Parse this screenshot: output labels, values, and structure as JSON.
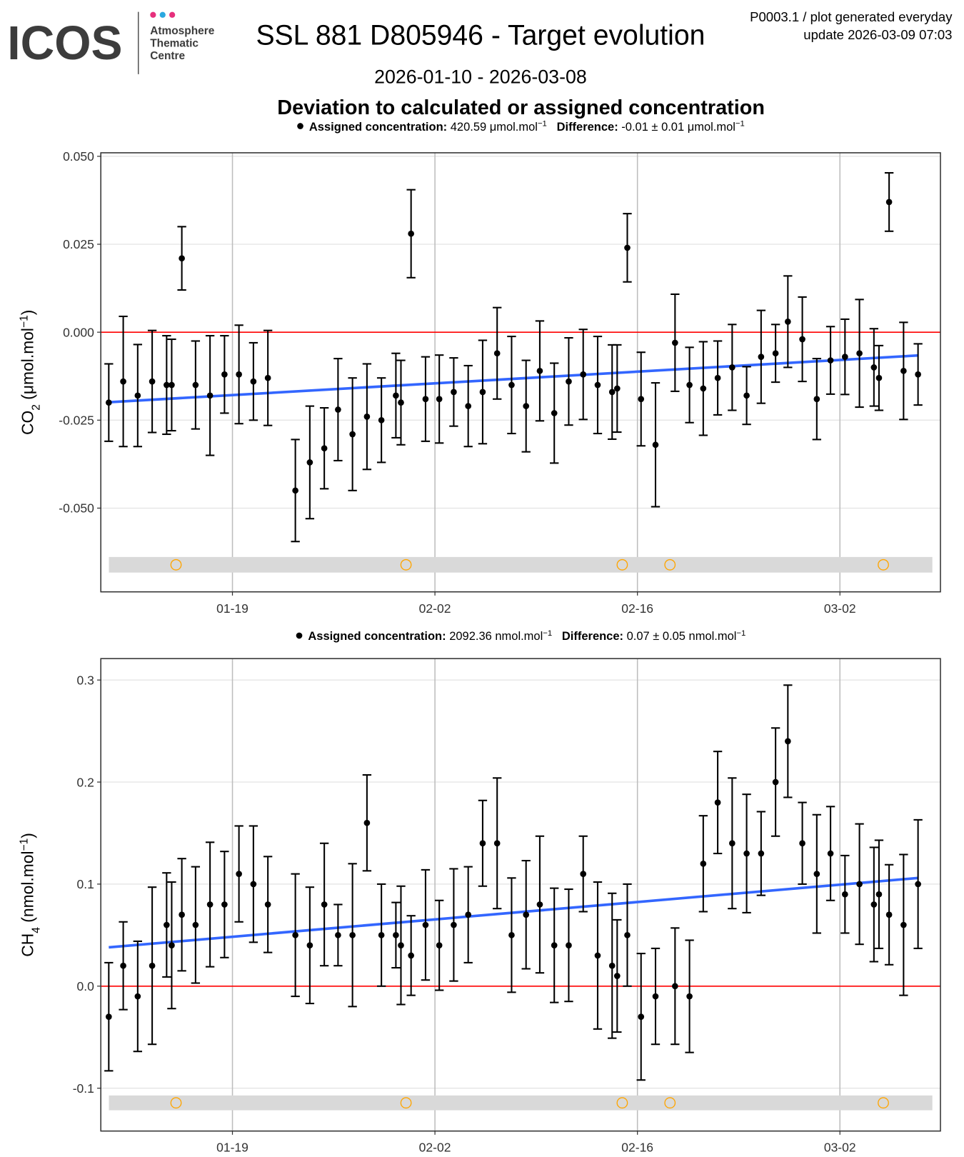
{
  "header": {
    "logo": "ICOS",
    "logo_lines": [
      "Atmosphere",
      "Thematic",
      "Centre"
    ],
    "title": "SSL 881 D805946 - Target evolution",
    "info": [
      "P0003.1 / plot generated everyday",
      "update  2026-03-09 07:03"
    ],
    "period": "2026-01-10 - 2026-03-08",
    "subtitle": "Deviation to calculated or assigned concentration"
  },
  "chart_data": [
    {
      "type": "scatter",
      "legend": {
        "label": "Assigned concentration:",
        "value": "420.59 μmol.mol",
        "value_exp": "−1",
        "diff_label": "Difference:",
        "diff_value": "-0.01 ± 0.01 μmol.mol",
        "diff_exp": "−1"
      },
      "ylabel": {
        "base": "CO",
        "sub": "2",
        "unit": " (μmol.mol",
        "sup": "−1",
        "close": ")"
      },
      "xlim": [
        9.9,
        67.95
      ],
      "xticks": [
        {
          "value": 19,
          "label": "01-19"
        },
        {
          "value": 33,
          "label": "02-02"
        },
        {
          "value": 47,
          "label": "02-16"
        },
        {
          "value": 61,
          "label": "03-02"
        }
      ],
      "ylim": [
        -0.0738,
        0.051
      ],
      "yticks": [
        {
          "value": -0.05,
          "label": "-0.050"
        },
        {
          "value": -0.025,
          "label": "-0.025"
        },
        {
          "value": 0,
          "label": "0.000"
        },
        {
          "value": 0.025,
          "label": "0.025"
        },
        {
          "value": 0.05,
          "label": "0.050"
        }
      ],
      "grid": true,
      "point_color": "#000000",
      "x": [
        10.45,
        11.45,
        12.45,
        13.45,
        14.45,
        14.8,
        15.5,
        16.45,
        17.45,
        18.45,
        19.45,
        20.45,
        21.45,
        23.35,
        24.35,
        25.35,
        26.3,
        27.3,
        28.3,
        29.3,
        30.3,
        30.65,
        31.35,
        32.35,
        33.3,
        34.3,
        35.3,
        36.3,
        37.3,
        38.3,
        39.3,
        40.25,
        41.25,
        42.25,
        43.25,
        44.25,
        45.25,
        45.6,
        46.3,
        47.25,
        48.25,
        49.6,
        50.6,
        51.55,
        52.55,
        53.55,
        54.55,
        55.55,
        56.55,
        57.4,
        58.4,
        59.4,
        60.35,
        61.35,
        62.35,
        63.35,
        63.7,
        64.4,
        65.4,
        66.4
      ],
      "values": [
        -0.02,
        -0.014,
        -0.018,
        -0.014,
        -0.015,
        -0.015,
        0.021,
        -0.015,
        -0.018,
        -0.012,
        -0.012,
        -0.014,
        -0.013,
        -0.045,
        -0.037,
        -0.033,
        -0.022,
        -0.029,
        -0.024,
        -0.025,
        -0.018,
        -0.02,
        0.028,
        -0.019,
        -0.019,
        -0.017,
        -0.021,
        -0.017,
        -0.006,
        -0.015,
        -0.021,
        -0.011,
        -0.023,
        -0.014,
        -0.012,
        -0.015,
        -0.017,
        -0.016,
        0.024,
        -0.019,
        -0.032,
        -0.003,
        -0.015,
        -0.016,
        -0.013,
        -0.01,
        -0.018,
        -0.007,
        -0.006,
        0.003,
        -0.002,
        -0.019,
        -0.008,
        -0.007,
        -0.006,
        -0.01,
        -0.013,
        0.037,
        -0.011,
        -0.012
      ],
      "errors": [
        0.011,
        0.0185,
        0.0145,
        0.0145,
        0.014,
        0.013,
        0.009,
        0.0125,
        0.017,
        0.011,
        0.014,
        0.011,
        0.0135,
        0.0145,
        0.016,
        0.0115,
        0.0145,
        0.016,
        0.015,
        0.012,
        0.012,
        0.012,
        0.0125,
        0.012,
        0.0125,
        0.0097,
        0.0115,
        0.0147,
        0.013,
        0.0138,
        0.013,
        0.0142,
        0.0142,
        0.0124,
        0.0128,
        0.0138,
        0.0134,
        0.0124,
        0.0097,
        0.0133,
        0.0176,
        0.0138,
        0.0107,
        0.0133,
        0.0105,
        0.0122,
        0.0082,
        0.0132,
        0.0082,
        0.013,
        0.012,
        0.0115,
        0.0096,
        0.0107,
        0.0153,
        0.011,
        0.0092,
        0.0083,
        0.0138,
        0.0087
      ],
      "trend": {
        "color": "#3366ff",
        "x": [
          10.45,
          66.4
        ],
        "values": [
          -0.0199,
          -0.0066
        ]
      },
      "reference_line": {
        "value": 0,
        "color": "#ff0000"
      },
      "flags": {
        "color": "#ffa500",
        "x": [
          15.1,
          31.0,
          45.95,
          49.25,
          64.0
        ]
      }
    },
    {
      "type": "scatter",
      "legend": {
        "label": "Assigned concentration:",
        "value": "2092.36 nmol.mol",
        "value_exp": "−1",
        "diff_label": "Difference:",
        "diff_value": "0.07 ± 0.05 nmol.mol",
        "diff_exp": "−1"
      },
      "ylabel": {
        "base": "CH",
        "sub": "4",
        "unit": " (nmol.mol",
        "sup": "−1",
        "close": ")"
      },
      "xlim": [
        9.9,
        67.95
      ],
      "xticks": [
        {
          "value": 19,
          "label": "01-19"
        },
        {
          "value": 33,
          "label": "02-02"
        },
        {
          "value": 47,
          "label": "02-16"
        },
        {
          "value": 61,
          "label": "03-02"
        }
      ],
      "ylim": [
        -0.142,
        0.321
      ],
      "yticks": [
        -0.1,
        {
          "value": 0,
          "label": "0.0"
        },
        0.1,
        0.2,
        0.3
      ],
      "grid": true,
      "point_color": "#000000",
      "x": [
        10.45,
        11.45,
        12.45,
        13.45,
        14.45,
        14.8,
        15.5,
        16.45,
        17.45,
        18.45,
        19.45,
        20.45,
        21.45,
        23.35,
        24.35,
        25.35,
        26.3,
        27.3,
        28.3,
        29.3,
        30.3,
        30.65,
        31.35,
        32.35,
        33.3,
        34.3,
        35.3,
        36.3,
        37.3,
        38.3,
        39.3,
        40.25,
        41.25,
        42.25,
        43.25,
        44.25,
        45.25,
        45.6,
        46.3,
        47.25,
        48.25,
        49.6,
        50.6,
        51.55,
        52.55,
        53.55,
        54.55,
        55.55,
        56.55,
        57.4,
        58.4,
        59.4,
        60.35,
        61.35,
        62.35,
        63.35,
        63.7,
        64.4,
        65.4,
        66.4
      ],
      "values": [
        -0.03,
        0.02,
        -0.01,
        0.02,
        0.06,
        0.04,
        0.07,
        0.06,
        0.08,
        0.08,
        0.11,
        0.1,
        0.08,
        0.05,
        0.04,
        0.08,
        0.05,
        0.05,
        0.16,
        0.05,
        0.05,
        0.04,
        0.03,
        0.06,
        0.04,
        0.06,
        0.07,
        0.14,
        0.14,
        0.05,
        0.07,
        0.08,
        0.04,
        0.04,
        0.11,
        0.03,
        0.02,
        0.01,
        0.05,
        -0.03,
        -0.01,
        0.0,
        -0.01,
        0.12,
        0.18,
        0.14,
        0.13,
        0.13,
        0.2,
        0.24,
        0.14,
        0.11,
        0.13,
        0.09,
        0.1,
        0.08,
        0.09,
        0.07,
        0.06,
        0.1
      ],
      "errors": [
        0.053,
        0.043,
        0.054,
        0.077,
        0.051,
        0.062,
        0.055,
        0.057,
        0.061,
        0.052,
        0.047,
        0.057,
        0.047,
        0.06,
        0.057,
        0.06,
        0.03,
        0.07,
        0.047,
        0.05,
        0.032,
        0.058,
        0.039,
        0.054,
        0.044,
        0.055,
        0.047,
        0.042,
        0.064,
        0.056,
        0.053,
        0.067,
        0.056,
        0.055,
        0.037,
        0.072,
        0.071,
        0.055,
        0.05,
        0.062,
        0.047,
        0.057,
        0.055,
        0.047,
        0.05,
        0.064,
        0.058,
        0.041,
        0.053,
        0.055,
        0.04,
        0.058,
        0.046,
        0.038,
        0.059,
        0.056,
        0.053,
        0.049,
        0.069,
        0.063
      ],
      "trend": {
        "color": "#3366ff",
        "x": [
          10.45,
          66.4
        ],
        "values": [
          0.038,
          0.106
        ]
      },
      "reference_line": {
        "value": 0,
        "color": "#ff0000"
      },
      "flags": {
        "color": "#ffa500",
        "x": [
          15.1,
          31.0,
          45.95,
          49.25,
          64.0
        ]
      }
    }
  ]
}
